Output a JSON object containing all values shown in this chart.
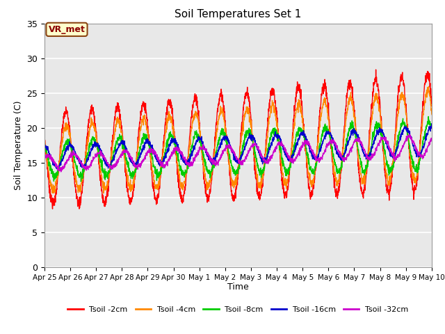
{
  "title": "Soil Temperatures Set 1",
  "xlabel": "Time",
  "ylabel": "Soil Temperature (C)",
  "ylim": [
    0,
    35
  ],
  "yticks": [
    0,
    5,
    10,
    15,
    20,
    25,
    30,
    35
  ],
  "plot_bg_color": "#e8e8e8",
  "fig_bg_color": "#ffffff",
  "annotation_text": "VR_met",
  "annotation_bg": "#ffffcc",
  "annotation_border": "#8B4513",
  "legend_labels": [
    "Tsoil -2cm",
    "Tsoil -4cm",
    "Tsoil -8cm",
    "Tsoil -16cm",
    "Tsoil -32cm"
  ],
  "line_colors": [
    "#ff0000",
    "#ff8800",
    "#00cc00",
    "#0000cc",
    "#cc00cc"
  ],
  "tick_labels": [
    "Apr 25",
    "Apr 26",
    "Apr 27",
    "Apr 28",
    "Apr 29",
    "Apr 30",
    "May 1",
    "May 2",
    "May 3",
    "May 4",
    "May 5",
    "May 6",
    "May 7",
    "May 8",
    "May 9",
    "May 10"
  ],
  "tick_positions": [
    0,
    1,
    2,
    3,
    4,
    5,
    6,
    7,
    8,
    9,
    10,
    11,
    12,
    13,
    14,
    15
  ]
}
